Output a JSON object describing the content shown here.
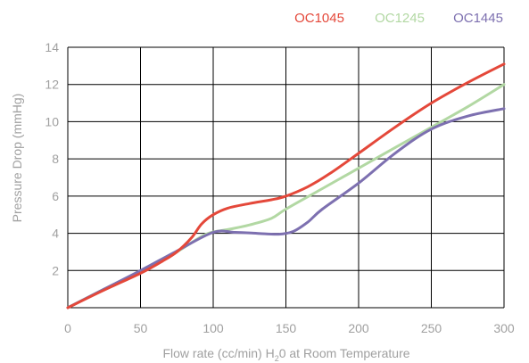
{
  "chart_data": {
    "type": "line",
    "title": "",
    "xlabel_main": "Flow rate (cc/min) H",
    "xlabel_sub": "2",
    "xlabel_rest": "0 at Room Temperature",
    "ylabel": "Pressure Drop (mmHg)",
    "xlim": [
      0,
      300
    ],
    "ylim": [
      0,
      14
    ],
    "xticks": [
      0,
      50,
      100,
      150,
      200,
      250,
      300
    ],
    "yticks": [
      2,
      4,
      6,
      8,
      10,
      12,
      14
    ],
    "grid": true,
    "legend_position": "top-right",
    "series": [
      {
        "name": "OC1045",
        "color": "#e4483a",
        "x": [
          0,
          25,
          50,
          65,
          75,
          85,
          92,
          100,
          110,
          125,
          140,
          150,
          165,
          180,
          200,
          225,
          250,
          275,
          300
        ],
        "y": [
          0,
          0.95,
          1.85,
          2.5,
          3.0,
          3.75,
          4.5,
          5.0,
          5.35,
          5.6,
          5.8,
          6.0,
          6.5,
          7.2,
          8.3,
          9.7,
          11.0,
          12.1,
          13.1
        ]
      },
      {
        "name": "OC1245",
        "color": "#b2d8a3",
        "x": [
          0,
          25,
          50,
          75,
          95,
          110,
          125,
          140,
          150,
          175,
          200,
          225,
          250,
          275,
          300
        ],
        "y": [
          0,
          1.0,
          1.95,
          3.0,
          3.95,
          4.2,
          4.45,
          4.8,
          5.3,
          6.4,
          7.5,
          8.6,
          9.7,
          10.8,
          12.0
        ]
      },
      {
        "name": "OC1445",
        "color": "#7d70b0",
        "x": [
          0,
          25,
          50,
          75,
          100,
          115,
          130,
          145,
          155,
          165,
          175,
          200,
          225,
          250,
          275,
          300
        ],
        "y": [
          0,
          1.0,
          2.0,
          3.05,
          4.05,
          4.05,
          4.0,
          3.95,
          4.1,
          4.6,
          5.3,
          6.7,
          8.3,
          9.6,
          10.3,
          10.7
        ]
      }
    ]
  }
}
